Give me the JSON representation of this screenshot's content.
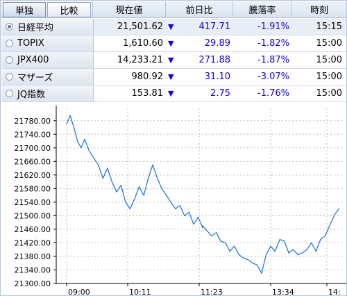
{
  "tabs": [
    {
      "label": "単独",
      "active": true
    },
    {
      "label": "比較",
      "active": false
    }
  ],
  "headers": {
    "price": "現在値",
    "change": "前日比",
    "pct": "騰落率",
    "time": "時刻"
  },
  "rows": [
    {
      "name": "日経平均",
      "price": "21,501.62",
      "arrow": "▼",
      "change": "417.71",
      "pct": "-1.91%",
      "time": "15:15",
      "selected": true
    },
    {
      "name": "TOPIX",
      "price": "1,610.60",
      "arrow": "▼",
      "change": "29.89",
      "pct": "-1.82%",
      "time": "15:00",
      "selected": false
    },
    {
      "name": "JPX400",
      "price": "14,233.21",
      "arrow": "▼",
      "change": "271.88",
      "pct": "-1.87%",
      "time": "15:00",
      "selected": false
    },
    {
      "name": "マザーズ",
      "price": "980.92",
      "arrow": "▼",
      "change": "31.10",
      "pct": "-3.07%",
      "time": "15:00",
      "selected": false
    },
    {
      "name": "JQ指数",
      "price": "153.81",
      "arrow": "▼",
      "change": "2.75",
      "pct": "-1.76%",
      "time": "15:00",
      "selected": false
    }
  ],
  "colors": {
    "line": "#1a6fe0",
    "down": "#1400d8",
    "header_bg": "#dce5f1",
    "grid": "#bdbdbd"
  },
  "icons": {
    "radio": "radio-button-icon",
    "down": "down-triangle-icon"
  },
  "chart_data": {
    "type": "line",
    "ylim": [
      21300,
      21800
    ],
    "yticks": [
      "21780.00",
      "21740.00",
      "21700.00",
      "21660.00",
      "21620.00",
      "21580.00",
      "21540.00",
      "21500.00",
      "21460.00",
      "21420.00",
      "21380.00",
      "21340.00",
      "21300.00"
    ],
    "xticks": [
      "09:00",
      "10:11",
      "11:23",
      "13:34",
      "14:"
    ],
    "series": [
      {
        "x": [
          "09:00",
          "09:04",
          "09:08",
          "09:12",
          "09:16",
          "09:20",
          "09:25",
          "09:30",
          "09:35",
          "09:40",
          "09:45",
          "09:50",
          "09:55",
          "10:00",
          "10:05",
          "10:10",
          "10:15",
          "10:20",
          "10:25",
          "10:30",
          "10:35",
          "10:40",
          "10:45",
          "10:50",
          "10:55",
          "11:00",
          "11:05",
          "11:10",
          "11:15",
          "11:20",
          "11:25",
          "11:30",
          "12:30",
          "12:35",
          "12:40",
          "12:45",
          "12:50",
          "12:55",
          "13:00",
          "13:05",
          "13:10",
          "13:15",
          "13:20",
          "13:25",
          "13:30",
          "13:35",
          "13:40",
          "13:45",
          "13:50",
          "13:55",
          "14:00",
          "14:05",
          "14:10",
          "14:15",
          "14:20",
          "14:25",
          "14:30",
          "14:35",
          "14:40",
          "14:45",
          "14:50",
          "14:55",
          "15:00"
        ],
        "values": [
          21770,
          21795,
          21760,
          21720,
          21700,
          21725,
          21690,
          21670,
          21650,
          21610,
          21640,
          21600,
          21570,
          21590,
          21540,
          21520,
          21550,
          21585,
          21560,
          21610,
          21650,
          21610,
          21580,
          21560,
          21540,
          21520,
          21530,
          21500,
          21510,
          21475,
          21495,
          21465,
          21470,
          21455,
          21440,
          21450,
          21425,
          21420,
          21395,
          21410,
          21385,
          21375,
          21370,
          21360,
          21355,
          21330,
          21385,
          21410,
          21395,
          21430,
          21425,
          21390,
          21400,
          21385,
          21390,
          21400,
          21420,
          21395,
          21430,
          21440,
          21470,
          21500,
          21520
        ]
      }
    ]
  }
}
